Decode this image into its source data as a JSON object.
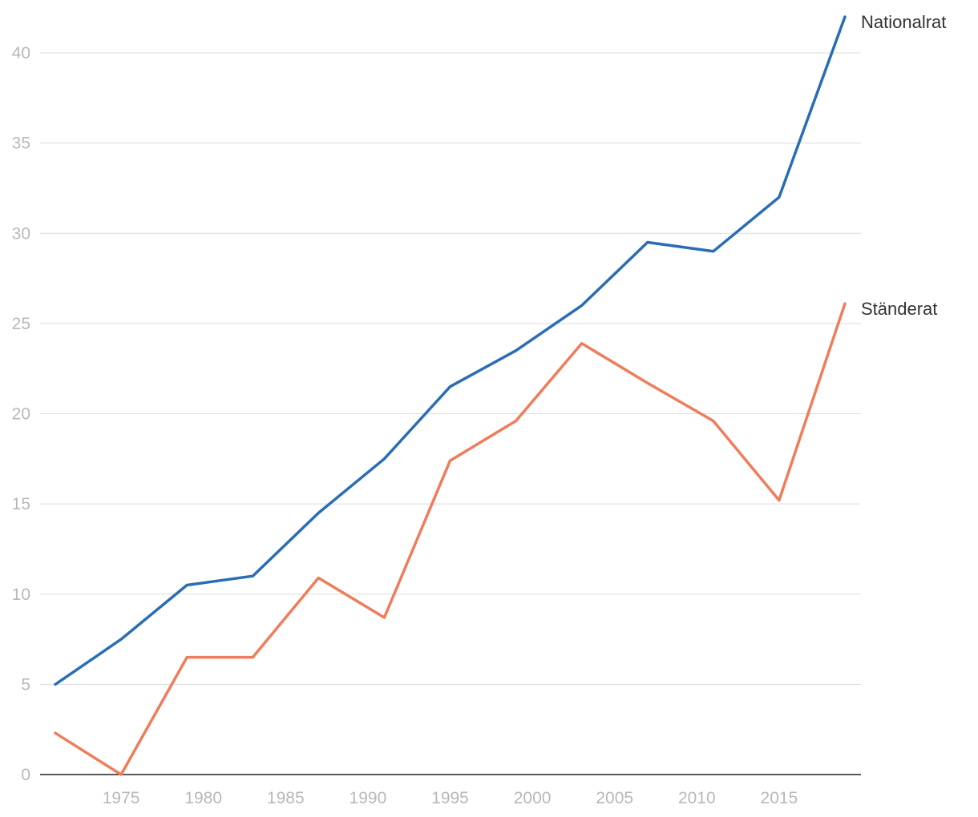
{
  "chart_data": {
    "type": "line",
    "x": [
      1971,
      1975,
      1979,
      1983,
      1987,
      1991,
      1995,
      1999,
      2003,
      2007,
      2011,
      2015,
      2019
    ],
    "series": [
      {
        "name": "Nationalrat",
        "color": "#2a6db5",
        "values": [
          5,
          7.5,
          10.5,
          11,
          14.5,
          17.5,
          21.5,
          23.5,
          26,
          29.5,
          29,
          32,
          42
        ]
      },
      {
        "name": "Ständerat",
        "color": "#ef7d5b",
        "values": [
          2.3,
          0,
          6.5,
          6.5,
          10.9,
          8.7,
          17.4,
          19.6,
          23.9,
          21.7,
          19.6,
          15.2,
          26.1
        ]
      }
    ],
    "x_ticks": [
      "1975",
      "1980",
      "1985",
      "1990",
      "1995",
      "2000",
      "2005",
      "2010",
      "2015"
    ],
    "y_ticks": [
      "0",
      "5",
      "10",
      "15",
      "20",
      "25",
      "30",
      "35",
      "40"
    ],
    "xlim": [
      1970,
      2020
    ],
    "ylim": [
      0,
      42
    ],
    "grid": "horizontal",
    "legend": "direct labels at line ends"
  }
}
